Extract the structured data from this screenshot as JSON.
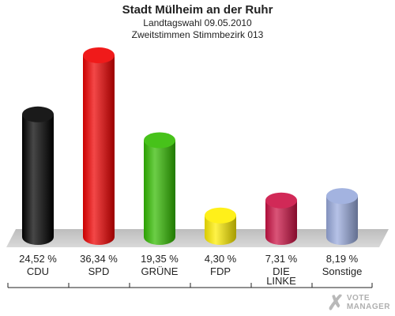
{
  "header": {
    "title": "Stadt Mülheim an der Ruhr",
    "subtitle1": "Landtagswahl 09.05.2010",
    "subtitle2": "Zweitstimmen Stimmbezirk 013"
  },
  "logo": {
    "line1": "VOTE",
    "line2": "MANAGER"
  },
  "chart_data": {
    "type": "bar",
    "title": "Stadt Mülheim an der Ruhr",
    "subtitle": "Landtagswahl 09.05.2010 · Zweitstimmen Stimmbezirk 013",
    "categories": [
      "CDU",
      "SPD",
      "GRÜNE",
      "FDP",
      "DIE LINKE",
      "Sonstige"
    ],
    "values": [
      24.52,
      36.34,
      19.35,
      4.3,
      7.31,
      8.19
    ],
    "value_labels": [
      "24,52 %",
      "36,34 %",
      "19,35 %",
      "4,30 %",
      "7,31 %",
      "8,19 %"
    ],
    "colors": [
      "#000000",
      "#ee0000",
      "#33bb00",
      "#ffee00",
      "#cc1144",
      "#99aadd"
    ],
    "unit": "%",
    "grid": false,
    "legend": "none"
  }
}
